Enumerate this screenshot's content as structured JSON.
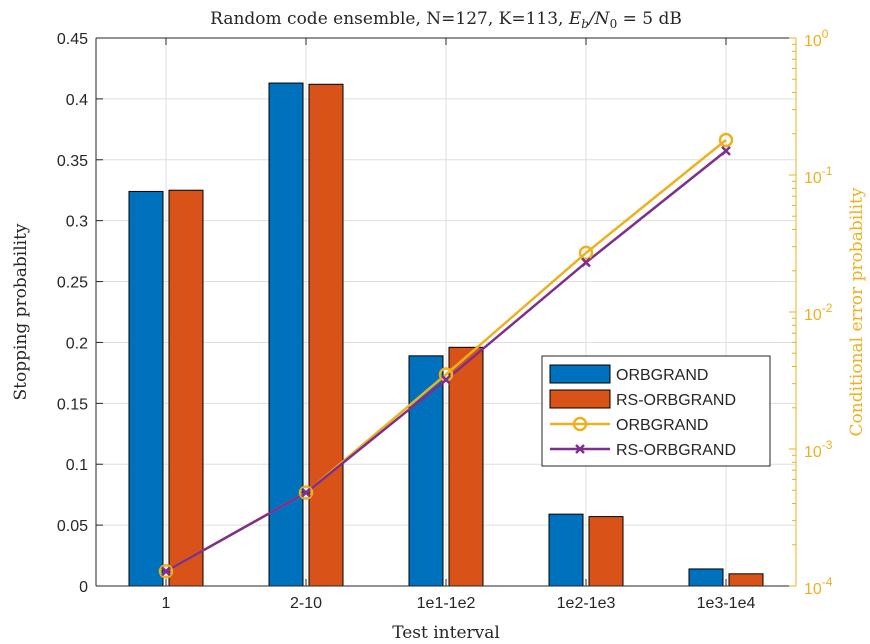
{
  "chart_data": {
    "type": "bar",
    "title_prefix": "Random code ensemble, N=127, K=113, ",
    "title_math_base": "E",
    "title_math_sub": "b",
    "title_math_slash": "/N",
    "title_math_sub2": "0",
    "title_suffix": " = 5 dB",
    "xlabel": "Test interval",
    "ylabel_left": "Stopping probability",
    "ylabel_right": "Conditional error probability",
    "categories": [
      "1",
      "2-10",
      "1e1-1e2",
      "1e2-1e3",
      "1e3-1e4"
    ],
    "ylim_left": [
      0,
      0.45
    ],
    "yticks_left": [
      0,
      0.05,
      0.1,
      0.15,
      0.2,
      0.25,
      0.3,
      0.35,
      0.4,
      0.45
    ],
    "ytick_labels_left": [
      "0",
      "0.05",
      "0.1",
      "0.15",
      "0.2",
      "0.25",
      "0.3",
      "0.35",
      "0.4",
      "0.45"
    ],
    "ylim_right": [
      0.0001,
      1
    ],
    "right_scale": "log",
    "yticks_right_exponents": [
      -4,
      -3,
      -2,
      -1,
      0
    ],
    "ytick_base": "10",
    "grid": true,
    "legend_placement": "center-right",
    "bar_series": [
      {
        "name": "ORBGRAND",
        "color": "#0072BD",
        "values": [
          0.324,
          0.413,
          0.189,
          0.059,
          0.014
        ]
      },
      {
        "name": "RS-ORBGRAND",
        "color": "#D95319",
        "values": [
          0.325,
          0.412,
          0.196,
          0.057,
          0.01
        ]
      }
    ],
    "line_series": [
      {
        "name": "ORBGRAND",
        "color": "#EDB120",
        "marker": "circle",
        "values": [
          0.000128,
          0.00048,
          0.0035,
          0.027,
          0.18
        ]
      },
      {
        "name": "RS-ORBGRAND",
        "color": "#7E2F8E",
        "marker": "x",
        "values": [
          0.000128,
          0.00048,
          0.0032,
          0.023,
          0.15
        ]
      }
    ]
  }
}
